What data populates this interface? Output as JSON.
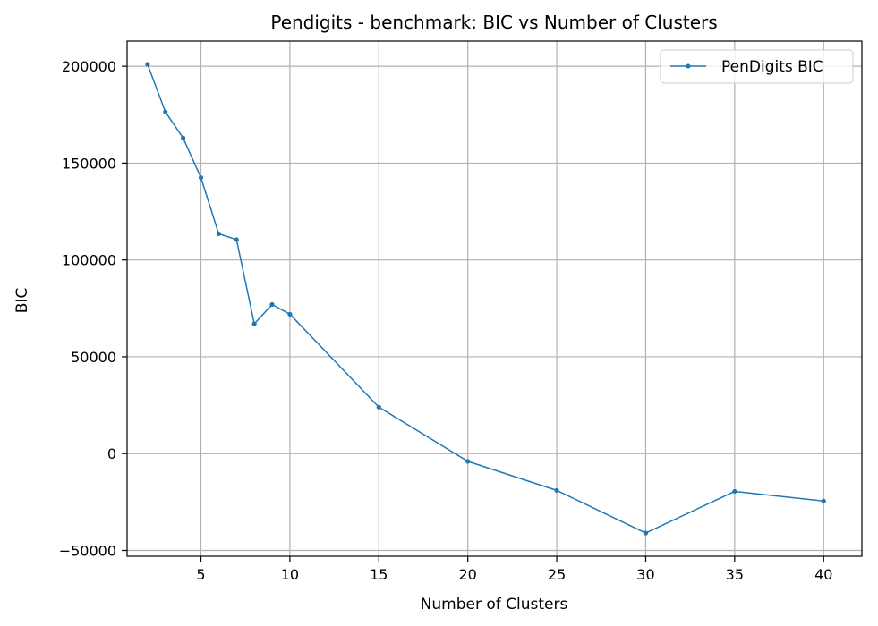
{
  "chart_data": {
    "type": "line",
    "title": "Pendigits - benchmark: BIC vs Number of Clusters",
    "xlabel": "Number of Clusters",
    "ylabel": "BIC",
    "xlim": [
      0.85,
      42.15
    ],
    "ylim": [
      -53000,
      213000
    ],
    "xticks": [
      5,
      10,
      15,
      20,
      25,
      30,
      35,
      40
    ],
    "yticks": [
      -50000,
      0,
      50000,
      100000,
      150000,
      200000
    ],
    "ytick_labels": [
      "−50000",
      "0",
      "50000",
      "100000",
      "150000",
      "200000"
    ],
    "grid": true,
    "legend_position": "top-right",
    "color": "#1f77b4",
    "series": [
      {
        "name": "PenDigits BIC",
        "x": [
          2,
          3,
          4,
          5,
          6,
          7,
          8,
          9,
          10,
          15,
          20,
          25,
          30,
          35,
          40
        ],
        "values": [
          201000,
          176500,
          163000,
          142500,
          113500,
          110500,
          67000,
          77000,
          72000,
          24000,
          -4000,
          -19000,
          -41000,
          -19500,
          -24500
        ]
      }
    ]
  }
}
